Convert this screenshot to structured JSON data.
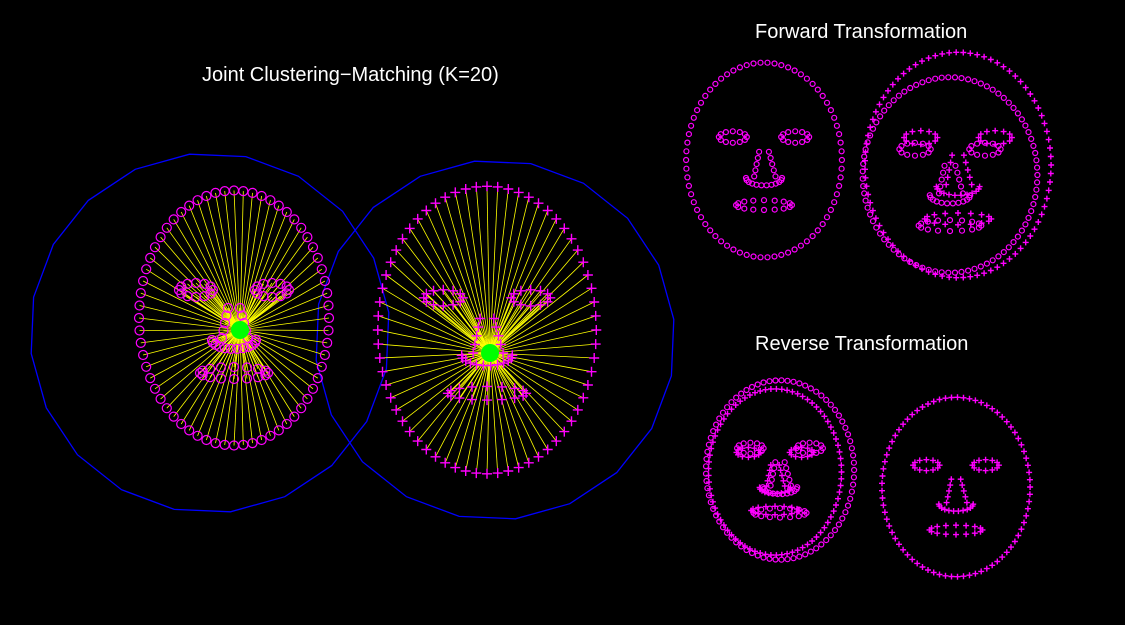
{
  "titles": {
    "main": "Joint Clustering−Matching (K=20)",
    "forward": "Forward Transformation",
    "reverse": "Reverse Transformation"
  },
  "colors": {
    "background": "#000000",
    "points": "#ff00ff",
    "match_lines": "#ffff00",
    "cluster_circle": "#0000ff",
    "cluster_center": "#00ff00",
    "text": "#ffffff"
  },
  "markers": {
    "set_a": "circle-marker",
    "set_b": "plus-marker"
  }
}
